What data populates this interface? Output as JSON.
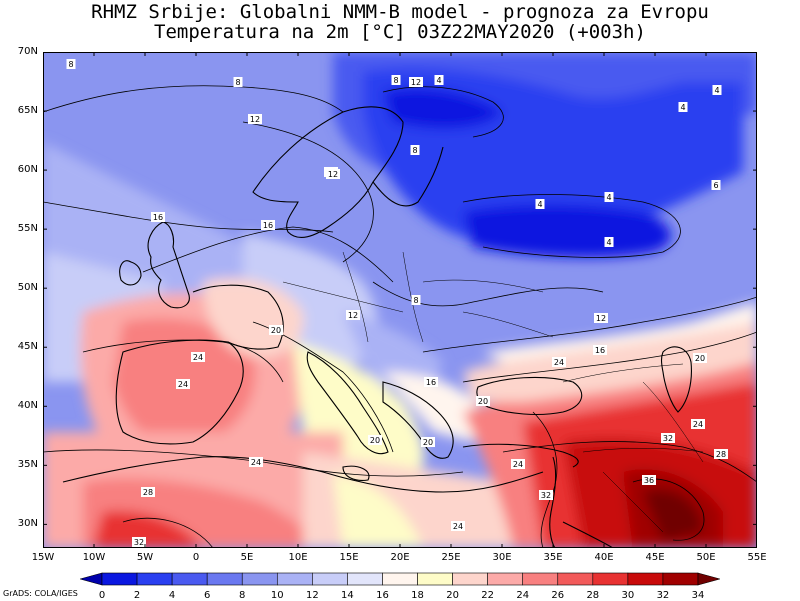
{
  "title_line1": "RHMZ Srbije: Globalni NMM-B model - prognoza za Evropu",
  "title_line2": "Temperatura na 2m [°C] 03Z22MAY2020 (+003h)",
  "footer_credit": "GrADS: COLA/IGES",
  "lon_labels": [
    "15W",
    "10W",
    "5W",
    "0",
    "5E",
    "10E",
    "15E",
    "20E",
    "25E",
    "30E",
    "35E",
    "40E",
    "45E",
    "50E",
    "55E"
  ],
  "lat_labels": [
    "70N",
    "65N",
    "60N",
    "55N",
    "50N",
    "45N",
    "40N",
    "35N",
    "30N"
  ],
  "colorbar": {
    "labels": [
      "0",
      "2",
      "4",
      "6",
      "8",
      "10",
      "12",
      "14",
      "16",
      "18",
      "20",
      "22",
      "24",
      "26",
      "28",
      "30",
      "32",
      "34"
    ],
    "colors": [
      "#0000ab",
      "#0a17e0",
      "#2a3ff0",
      "#4a5af0",
      "#6a78f0",
      "#8a95f0",
      "#aab2f5",
      "#c8cdf8",
      "#e2e5fb",
      "#fff5ee",
      "#fefcc8",
      "#fdd5cc",
      "#fcaaa8",
      "#f88080",
      "#f25a5a",
      "#e83232",
      "#c80a0a",
      "#a00000",
      "#700000"
    ]
  },
  "contour_labels": [
    "8",
    "8",
    "12",
    "12",
    "12",
    "8",
    "4",
    "4",
    "4",
    "4",
    "4",
    "4",
    "6",
    "8",
    "16",
    "16",
    "12",
    "8",
    "12",
    "16",
    "20",
    "20",
    "24",
    "24",
    "24",
    "20",
    "20",
    "24",
    "28",
    "32",
    "32",
    "24",
    "24",
    "36",
    "32",
    "28",
    "24",
    "20",
    "16",
    "12"
  ],
  "map": {
    "lon_range": [
      -15,
      55
    ],
    "lat_range": [
      28,
      70
    ]
  }
}
